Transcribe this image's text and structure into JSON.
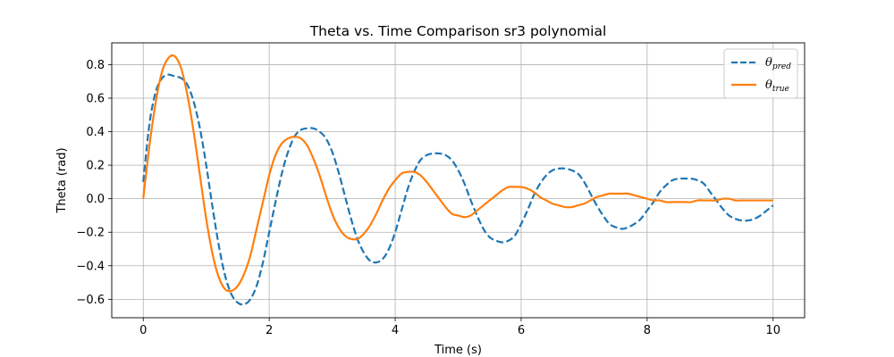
{
  "chart_data": {
    "type": "line",
    "title": "Theta vs. Time Comparison sr3 polynomial",
    "xlabel": "Time (s)",
    "ylabel": "Theta (rad)",
    "xlim": [
      -0.5,
      10.5
    ],
    "ylim": [
      -0.71,
      0.93
    ],
    "x_ticks": [
      0,
      2,
      4,
      6,
      8,
      10
    ],
    "x_tick_labels": [
      "0",
      "2",
      "4",
      "6",
      "8",
      "10"
    ],
    "y_ticks": [
      -0.6,
      -0.4,
      -0.2,
      0.0,
      0.2,
      0.4,
      0.6,
      0.8
    ],
    "y_tick_labels": [
      "−0.6",
      "−0.4",
      "−0.2",
      "0.0",
      "0.2",
      "0.4",
      "0.6",
      "0.8"
    ],
    "grid": true,
    "legend_position": "top-right",
    "series": [
      {
        "name": "θpred",
        "legend_main": "θ",
        "legend_sub": "pred",
        "color": "#1f77b4",
        "style": "dashed",
        "x": [
          0.0,
          0.1,
          0.2,
          0.3,
          0.4,
          0.5,
          0.6,
          0.7,
          0.8,
          0.9,
          1.0,
          1.1,
          1.2,
          1.3,
          1.4,
          1.5,
          1.6,
          1.7,
          1.8,
          1.9,
          2.0,
          2.1,
          2.2,
          2.3,
          2.4,
          2.5,
          2.6,
          2.7,
          2.8,
          2.9,
          3.0,
          3.1,
          3.2,
          3.3,
          3.4,
          3.5,
          3.6,
          3.7,
          3.8,
          3.9,
          4.0,
          4.1,
          4.2,
          4.3,
          4.4,
          4.5,
          4.6,
          4.7,
          4.8,
          4.9,
          5.0,
          5.1,
          5.2,
          5.3,
          5.4,
          5.5,
          5.6,
          5.7,
          5.8,
          5.9,
          6.0,
          6.1,
          6.2,
          6.3,
          6.4,
          6.5,
          6.6,
          6.7,
          6.8,
          6.9,
          7.0,
          7.1,
          7.2,
          7.3,
          7.4,
          7.5,
          7.6,
          7.7,
          7.8,
          7.9,
          8.0,
          8.1,
          8.2,
          8.3,
          8.4,
          8.5,
          8.6,
          8.7,
          8.8,
          8.9,
          9.0,
          9.1,
          9.2,
          9.3,
          9.4,
          9.5,
          9.6,
          9.7,
          9.8,
          9.9,
          10.0
        ],
        "y": [
          0.1,
          0.45,
          0.64,
          0.72,
          0.74,
          0.73,
          0.72,
          0.68,
          0.58,
          0.42,
          0.2,
          -0.05,
          -0.28,
          -0.46,
          -0.57,
          -0.62,
          -0.63,
          -0.6,
          -0.52,
          -0.38,
          -0.2,
          -0.02,
          0.15,
          0.28,
          0.37,
          0.41,
          0.42,
          0.42,
          0.4,
          0.36,
          0.28,
          0.16,
          0.02,
          -0.12,
          -0.24,
          -0.32,
          -0.37,
          -0.38,
          -0.36,
          -0.3,
          -0.2,
          -0.07,
          0.06,
          0.16,
          0.23,
          0.26,
          0.27,
          0.27,
          0.26,
          0.23,
          0.17,
          0.09,
          -0.01,
          -0.1,
          -0.18,
          -0.23,
          -0.25,
          -0.26,
          -0.25,
          -0.22,
          -0.15,
          -0.07,
          0.02,
          0.09,
          0.14,
          0.17,
          0.18,
          0.18,
          0.17,
          0.15,
          0.1,
          0.03,
          -0.04,
          -0.1,
          -0.15,
          -0.17,
          -0.18,
          -0.17,
          -0.15,
          -0.12,
          -0.07,
          -0.02,
          0.04,
          0.08,
          0.11,
          0.12,
          0.12,
          0.12,
          0.11,
          0.09,
          0.04,
          -0.01,
          -0.06,
          -0.1,
          -0.12,
          -0.13,
          -0.13,
          -0.12,
          -0.1,
          -0.07,
          -0.04
        ]
      },
      {
        "name": "θtrue",
        "legend_main": "θ",
        "legend_sub": "true",
        "color": "#ff7f0e",
        "style": "solid",
        "x": [
          0.0,
          0.1,
          0.2,
          0.3,
          0.4,
          0.5,
          0.6,
          0.7,
          0.8,
          0.9,
          1.0,
          1.1,
          1.2,
          1.3,
          1.4,
          1.5,
          1.6,
          1.7,
          1.8,
          1.9,
          2.0,
          2.1,
          2.2,
          2.3,
          2.4,
          2.5,
          2.6,
          2.7,
          2.8,
          2.9,
          3.0,
          3.1,
          3.2,
          3.3,
          3.4,
          3.5,
          3.6,
          3.7,
          3.8,
          3.9,
          4.0,
          4.1,
          4.2,
          4.3,
          4.4,
          4.5,
          4.6,
          4.7,
          4.8,
          4.9,
          5.0,
          5.1,
          5.2,
          5.3,
          5.4,
          5.5,
          5.6,
          5.7,
          5.8,
          5.9,
          6.0,
          6.1,
          6.2,
          6.3,
          6.4,
          6.5,
          6.6,
          6.7,
          6.8,
          6.9,
          7.0,
          7.1,
          7.2,
          7.3,
          7.4,
          7.5,
          7.6,
          7.7,
          7.8,
          7.9,
          8.0,
          8.1,
          8.2,
          8.3,
          8.4,
          8.5,
          8.6,
          8.7,
          8.8,
          8.9,
          9.0,
          9.1,
          9.2,
          9.3,
          9.4,
          9.5,
          9.6,
          9.7,
          9.8,
          9.9,
          10.0
        ],
        "y": [
          0.0,
          0.32,
          0.58,
          0.76,
          0.84,
          0.85,
          0.78,
          0.62,
          0.4,
          0.14,
          -0.12,
          -0.33,
          -0.47,
          -0.54,
          -0.55,
          -0.52,
          -0.45,
          -0.34,
          -0.18,
          -0.02,
          0.14,
          0.26,
          0.33,
          0.36,
          0.37,
          0.36,
          0.32,
          0.24,
          0.14,
          0.02,
          -0.09,
          -0.17,
          -0.22,
          -0.24,
          -0.24,
          -0.21,
          -0.16,
          -0.09,
          -0.01,
          0.06,
          0.11,
          0.15,
          0.16,
          0.16,
          0.14,
          0.1,
          0.05,
          0.0,
          -0.05,
          -0.09,
          -0.1,
          -0.11,
          -0.1,
          -0.07,
          -0.04,
          -0.01,
          0.02,
          0.05,
          0.07,
          0.07,
          0.07,
          0.06,
          0.04,
          0.01,
          -0.01,
          -0.03,
          -0.04,
          -0.05,
          -0.05,
          -0.04,
          -0.03,
          -0.01,
          0.01,
          0.02,
          0.03,
          0.03,
          0.03,
          0.03,
          0.02,
          0.01,
          0.0,
          -0.01,
          -0.01,
          -0.02,
          -0.02,
          -0.02,
          -0.02,
          -0.02,
          -0.01,
          -0.01,
          -0.01,
          -0.01,
          0.0,
          0.0,
          -0.01,
          -0.01,
          -0.01,
          -0.01,
          -0.01,
          -0.01,
          -0.01
        ]
      }
    ]
  }
}
